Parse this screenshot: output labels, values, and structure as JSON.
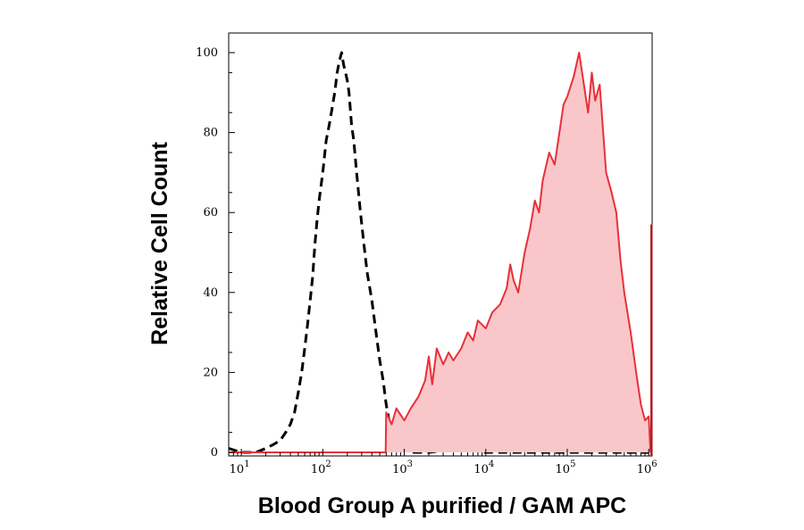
{
  "chart_data": {
    "type": "area",
    "title": "",
    "xlabel": "Blood Group A purified / GAM APC",
    "ylabel": "Relative Cell Count",
    "x_scale": "log",
    "xlim": [
      7,
      1100000
    ],
    "ylim": [
      0,
      104
    ],
    "x_ticks": [
      {
        "base": "10",
        "exp": "1",
        "value": 10
      },
      {
        "base": "10",
        "exp": "2",
        "value": 100
      },
      {
        "base": "10",
        "exp": "3",
        "value": 1000
      },
      {
        "base": "10",
        "exp": "4",
        "value": 10000
      },
      {
        "base": "10",
        "exp": "5",
        "value": 100000
      },
      {
        "base": "10",
        "exp": "6",
        "value": 1000000
      }
    ],
    "y_ticks": [
      "0",
      "20",
      "40",
      "60",
      "80",
      "100"
    ],
    "grid": false,
    "legend": "none",
    "series": [
      {
        "style": "dashed",
        "color": "#000000",
        "points": [
          [
            7,
            1
          ],
          [
            10,
            0
          ],
          [
            15,
            0
          ],
          [
            20,
            1
          ],
          [
            25,
            2
          ],
          [
            30,
            3
          ],
          [
            35,
            5
          ],
          [
            40,
            7
          ],
          [
            45,
            10
          ],
          [
            50,
            15
          ],
          [
            55,
            20
          ],
          [
            60,
            26
          ],
          [
            65,
            32
          ],
          [
            70,
            38
          ],
          [
            75,
            44
          ],
          [
            80,
            52
          ],
          [
            85,
            58
          ],
          [
            90,
            63
          ],
          [
            100,
            70
          ],
          [
            110,
            78
          ],
          [
            120,
            82
          ],
          [
            130,
            86
          ],
          [
            140,
            90
          ],
          [
            150,
            95
          ],
          [
            160,
            98
          ],
          [
            170,
            100
          ],
          [
            180,
            97
          ],
          [
            190,
            95
          ],
          [
            200,
            93
          ],
          [
            210,
            90
          ],
          [
            225,
            82
          ],
          [
            240,
            78
          ],
          [
            260,
            70
          ],
          [
            290,
            60
          ],
          [
            320,
            52
          ],
          [
            350,
            45
          ],
          [
            400,
            38
          ],
          [
            450,
            30
          ],
          [
            500,
            23
          ],
          [
            550,
            18
          ],
          [
            600,
            12
          ],
          [
            650,
            8
          ],
          [
            700,
            3
          ],
          [
            800,
            1
          ],
          [
            1000,
            2
          ],
          [
            1300,
            0
          ],
          [
            2000,
            0
          ],
          [
            5000,
            1
          ],
          [
            10000,
            0
          ],
          [
            100000,
            0
          ],
          [
            1000000,
            0
          ]
        ]
      },
      {
        "style": "filled",
        "color": "#e8303a",
        "fill": "#f9c7c9",
        "points": [
          [
            7,
            0
          ],
          [
            590,
            0
          ],
          [
            600,
            10
          ],
          [
            700,
            7
          ],
          [
            800,
            11
          ],
          [
            1000,
            8
          ],
          [
            1200,
            11
          ],
          [
            1500,
            14
          ],
          [
            1800,
            18
          ],
          [
            2000,
            24
          ],
          [
            2200,
            17
          ],
          [
            2500,
            26
          ],
          [
            3000,
            22
          ],
          [
            3500,
            25
          ],
          [
            4000,
            23
          ],
          [
            5000,
            26
          ],
          [
            6000,
            30
          ],
          [
            7000,
            28
          ],
          [
            8000,
            33
          ],
          [
            10000,
            31
          ],
          [
            12000,
            35
          ],
          [
            15000,
            37
          ],
          [
            18000,
            41
          ],
          [
            20000,
            47
          ],
          [
            22000,
            43
          ],
          [
            25000,
            40
          ],
          [
            30000,
            50
          ],
          [
            35000,
            56
          ],
          [
            40000,
            63
          ],
          [
            45000,
            60
          ],
          [
            50000,
            68
          ],
          [
            60000,
            75
          ],
          [
            70000,
            72
          ],
          [
            80000,
            80
          ],
          [
            90000,
            87
          ],
          [
            100000,
            89
          ],
          [
            120000,
            94
          ],
          [
            140000,
            100
          ],
          [
            160000,
            92
          ],
          [
            180000,
            85
          ],
          [
            200000,
            95
          ],
          [
            220000,
            88
          ],
          [
            250000,
            92
          ],
          [
            300000,
            70
          ],
          [
            350000,
            65
          ],
          [
            400000,
            60
          ],
          [
            450000,
            48
          ],
          [
            500000,
            40
          ],
          [
            600000,
            30
          ],
          [
            700000,
            20
          ],
          [
            800000,
            12
          ],
          [
            900000,
            8
          ],
          [
            1000000,
            9
          ],
          [
            1050000,
            0
          ]
        ]
      }
    ],
    "edge_bar": {
      "x": 1080000,
      "y": 57,
      "color": "#b01c22"
    }
  }
}
